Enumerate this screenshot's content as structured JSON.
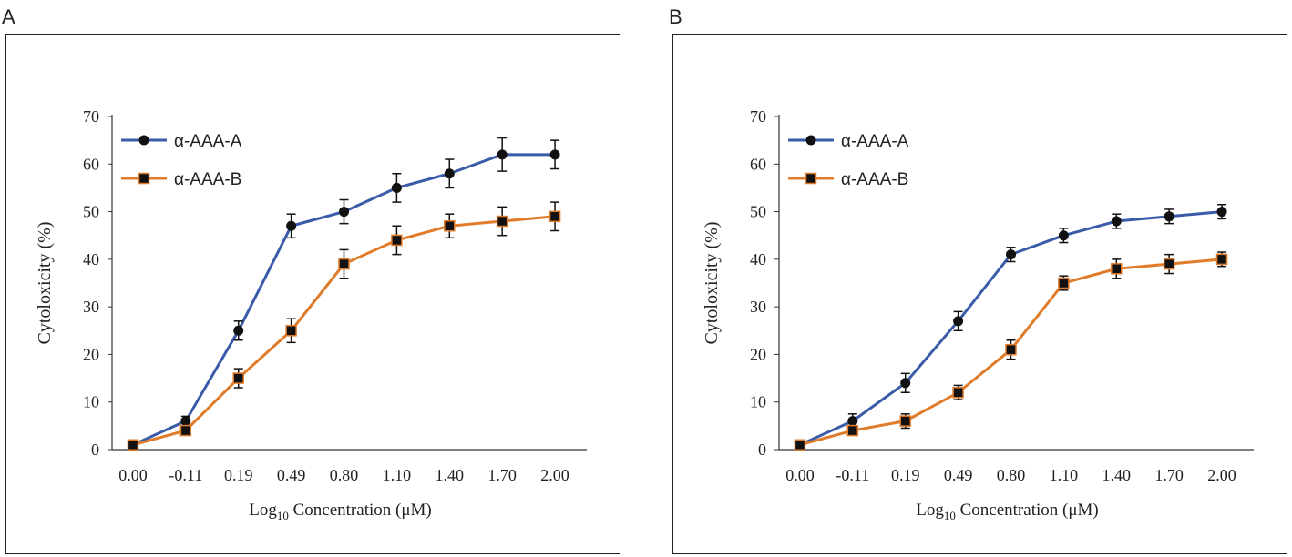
{
  "panels": [
    {
      "label": "A"
    },
    {
      "label": "B"
    }
  ],
  "colors": {
    "series_a": "#3a5ba8",
    "series_b": "#e07b2a",
    "marker": "#111111",
    "axis": "#333333"
  },
  "chart_data": [
    {
      "type": "line",
      "title": "",
      "xlabel_main": "Log",
      "xlabel_sub": "10",
      "xlabel_rest": " Concentration (",
      "xlabel_unit": "μM)",
      "ylabel": "Cytoloxicity  (%)",
      "ylim": [
        0,
        70
      ],
      "yticks": [
        "0",
        "10",
        "20",
        "30",
        "40",
        "50",
        "60",
        "70"
      ],
      "categories": [
        "0.00",
        "-0.11",
        "0.19",
        "0.49",
        "0.80",
        "1.10",
        "1.40",
        "1.70",
        "2.00"
      ],
      "series": [
        {
          "name": "α-AAA-A",
          "marker": "circle",
          "values": [
            1,
            6,
            25,
            47,
            50,
            55,
            58,
            62,
            62
          ],
          "errors": [
            0.5,
            1,
            2,
            2.5,
            2.5,
            3,
            3,
            3.5,
            3
          ]
        },
        {
          "name": "α-AAA-B",
          "marker": "square",
          "values": [
            1,
            4,
            15,
            25,
            39,
            44,
            47,
            48,
            49
          ],
          "errors": [
            0.5,
            1,
            2,
            2.5,
            3,
            3,
            2.5,
            3,
            3
          ]
        }
      ],
      "legend": "top-left"
    },
    {
      "type": "line",
      "title": "",
      "xlabel_main": "Log",
      "xlabel_sub": "10",
      "xlabel_rest": " Concentration (",
      "xlabel_unit": "μM)",
      "ylabel": "Cytoloxicity  (%)",
      "ylim": [
        0,
        70
      ],
      "yticks": [
        "0",
        "10",
        "20",
        "30",
        "40",
        "50",
        "60",
        "70"
      ],
      "categories": [
        "0.00",
        "-0.11",
        "0.19",
        "0.49",
        "0.80",
        "1.10",
        "1.40",
        "1.70",
        "2.00"
      ],
      "series": [
        {
          "name": "α-AAA-A",
          "marker": "circle",
          "values": [
            1,
            6,
            14,
            27,
            41,
            45,
            48,
            49,
            50
          ],
          "errors": [
            0.5,
            1.5,
            2,
            2,
            1.5,
            1.5,
            1.5,
            1.5,
            1.5
          ]
        },
        {
          "name": "α-AAA-B",
          "marker": "square",
          "values": [
            1,
            4,
            6,
            12,
            21,
            35,
            38,
            39,
            40
          ],
          "errors": [
            0.5,
            1,
            1.5,
            1.5,
            2,
            1.5,
            2,
            2,
            1.5
          ]
        }
      ],
      "legend": "top-left"
    }
  ]
}
